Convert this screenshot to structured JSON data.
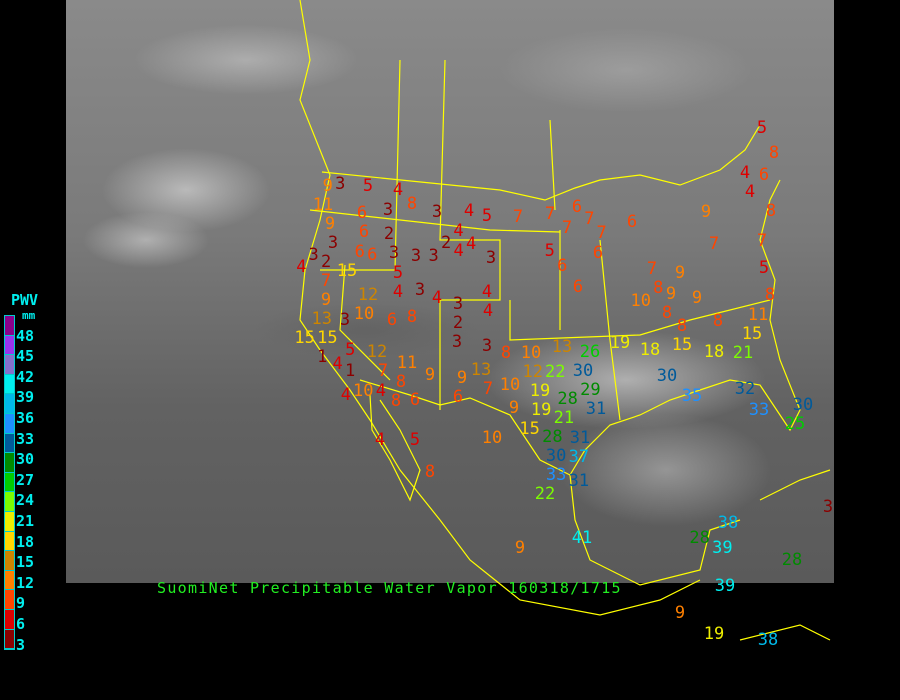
{
  "caption": "SuomiNet Precipitable Water Vapor 160318/1715",
  "legend": {
    "title": "PWV",
    "unit": "mm",
    "ticks": [
      "48",
      "45",
      "42",
      "39",
      "36",
      "33",
      "30",
      "27",
      "24",
      "21",
      "18",
      "15",
      "12",
      "9",
      "6",
      "3"
    ],
    "colors": [
      "#8b008b",
      "#9933ee",
      "#8470cc",
      "#00eeee",
      "#00b8e8",
      "#1e90ff",
      "#005a9a",
      "#008b00",
      "#00cd00",
      "#7cfc00",
      "#eeee00",
      "#ffd700",
      "#cd8500",
      "#ff8000",
      "#ff4500",
      "#dd0000",
      "#8b0000"
    ]
  },
  "border_color": "#ffff00",
  "stations": [
    "5",
    "8",
    "4",
    "6",
    "4",
    "8",
    "9",
    "6",
    "7",
    "6",
    "7",
    "7",
    "7",
    "5",
    "6",
    "6",
    "6",
    "7",
    "9",
    "7",
    "7",
    "5",
    "8",
    "11",
    "15",
    "8",
    "8",
    "9",
    "8",
    "10",
    "9",
    "8",
    "26",
    "19",
    "18",
    "15",
    "18",
    "21",
    "30",
    "35",
    "32",
    "33",
    "30",
    "25",
    "8",
    "10",
    "13",
    "12",
    "22",
    "30",
    "29",
    "10",
    "19",
    "28",
    "31",
    "9",
    "15",
    "19",
    "21",
    "10",
    "28",
    "30",
    "37",
    "31",
    "33",
    "31",
    "22",
    "9",
    "41",
    "28",
    "38",
    "39",
    "39",
    "28",
    "3",
    "9",
    "19",
    "38",
    "3",
    "5",
    "4",
    "8",
    "3",
    "4",
    "5",
    "7",
    "9",
    "11",
    "9",
    "6",
    "3",
    "6",
    "2",
    "6",
    "6",
    "3",
    "3",
    "3",
    "2",
    "4",
    "4",
    "4",
    "3",
    "3",
    "3",
    "4",
    "2",
    "15",
    "7",
    "9",
    "13",
    "3",
    "15",
    "15",
    "12",
    "10",
    "6",
    "8",
    "5",
    "3",
    "4",
    "4",
    "3",
    "2",
    "3",
    "4",
    "4",
    "3",
    "1",
    "5",
    "4",
    "1",
    "12",
    "7",
    "11",
    "9",
    "8",
    "10",
    "4",
    "4",
    "8",
    "6",
    "9",
    "13",
    "7",
    "6",
    "4",
    "5",
    "8",
    "5",
    "11",
    "15",
    "26"
  ]
}
